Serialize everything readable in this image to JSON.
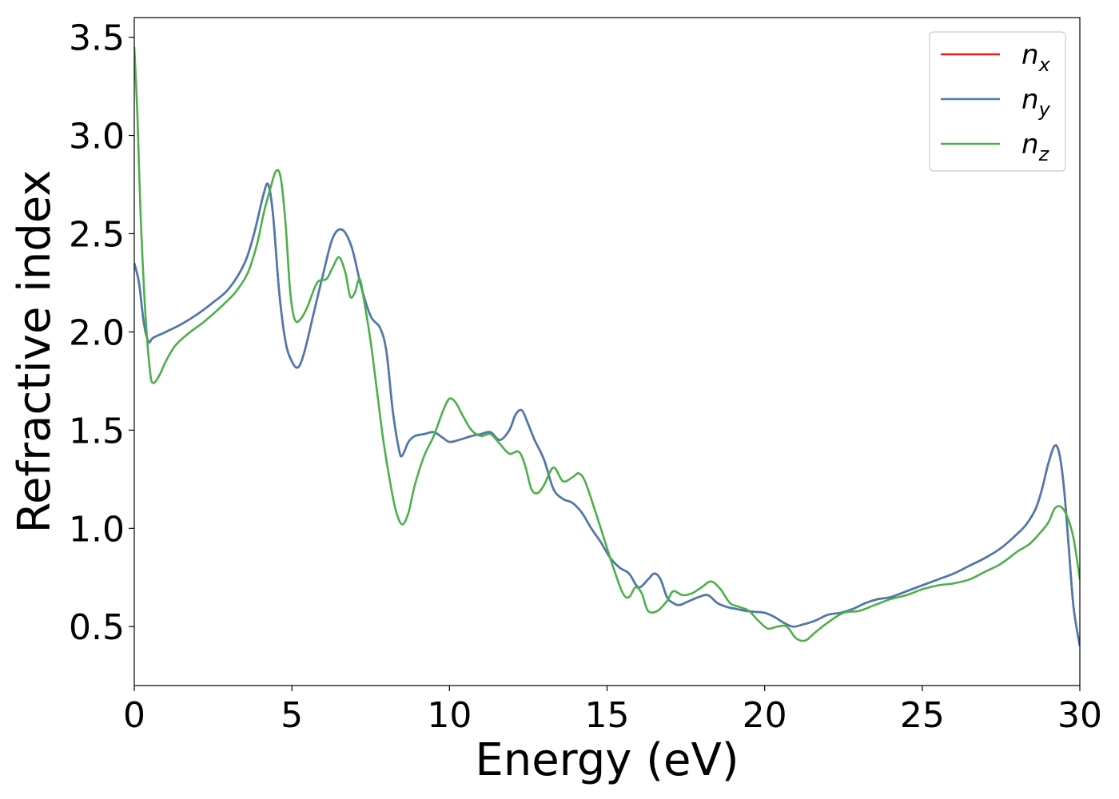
{
  "chart_data": {
    "type": "line",
    "title": "",
    "xlabel": "Energy (eV)",
    "ylabel": "Refractive index",
    "xlim": [
      0,
      30
    ],
    "ylim": [
      0.2,
      3.6
    ],
    "xticks": [
      0,
      5,
      10,
      15,
      20,
      25,
      30
    ],
    "xtick_labels": [
      "0",
      "5",
      "10",
      "15",
      "20",
      "25",
      "30"
    ],
    "yticks": [
      0.5,
      1.0,
      1.5,
      2.0,
      2.5,
      3.0,
      3.5
    ],
    "ytick_labels": [
      "0.5",
      "1.0",
      "1.5",
      "2.0",
      "2.5",
      "3.0",
      "3.5"
    ],
    "grid": false,
    "legend_position": "top-right",
    "series": [
      {
        "name": "n_x",
        "label_base": "n",
        "label_sub": "x",
        "color": "#e41a1c",
        "x": [
          0,
          0.15,
          0.3,
          0.45,
          0.6,
          1.0,
          1.5,
          2.0,
          2.5,
          3.0,
          3.5,
          3.8,
          4.1,
          4.25,
          4.4,
          4.6,
          4.8,
          5.0,
          5.2,
          5.4,
          5.7,
          6.0,
          6.3,
          6.6,
          6.9,
          7.2,
          7.5,
          7.8,
          8.0,
          8.2,
          8.4,
          8.5,
          8.7,
          8.9,
          9.2,
          9.5,
          9.8,
          10.0,
          10.3,
          10.7,
          11.0,
          11.3,
          11.6,
          11.9,
          12.1,
          12.3,
          12.5,
          12.7,
          13.0,
          13.3,
          13.6,
          13.9,
          14.2,
          14.5,
          14.8,
          15.1,
          15.4,
          15.7,
          16.0,
          16.3,
          16.5,
          16.7,
          16.9,
          17.1,
          17.3,
          17.6,
          17.9,
          18.2,
          18.5,
          18.8,
          19.1,
          19.4,
          19.7,
          20.0,
          20.3,
          20.6,
          20.9,
          21.2,
          21.6,
          22.0,
          22.4,
          22.8,
          23.2,
          23.6,
          24.0,
          24.5,
          25.0,
          25.5,
          26.0,
          26.5,
          27.0,
          27.5,
          28.0,
          28.3,
          28.6,
          28.8,
          29.0,
          29.2,
          29.35,
          29.5,
          29.65,
          29.8,
          30.0
        ],
        "y": [
          2.35,
          2.25,
          2.05,
          1.95,
          1.97,
          2.0,
          2.04,
          2.09,
          2.15,
          2.22,
          2.35,
          2.5,
          2.7,
          2.75,
          2.6,
          2.2,
          1.95,
          1.85,
          1.82,
          1.9,
          2.1,
          2.3,
          2.48,
          2.52,
          2.43,
          2.23,
          2.08,
          2.02,
          1.9,
          1.6,
          1.4,
          1.37,
          1.44,
          1.47,
          1.48,
          1.49,
          1.46,
          1.44,
          1.45,
          1.47,
          1.48,
          1.49,
          1.45,
          1.5,
          1.58,
          1.6,
          1.53,
          1.45,
          1.35,
          1.2,
          1.15,
          1.13,
          1.08,
          1.0,
          0.93,
          0.85,
          0.8,
          0.77,
          0.7,
          0.74,
          0.77,
          0.74,
          0.65,
          0.62,
          0.61,
          0.63,
          0.65,
          0.66,
          0.62,
          0.6,
          0.59,
          0.58,
          0.575,
          0.57,
          0.55,
          0.52,
          0.5,
          0.51,
          0.53,
          0.56,
          0.57,
          0.59,
          0.62,
          0.64,
          0.65,
          0.68,
          0.71,
          0.74,
          0.77,
          0.81,
          0.85,
          0.9,
          0.97,
          1.02,
          1.1,
          1.2,
          1.33,
          1.42,
          1.38,
          1.2,
          0.9,
          0.6,
          0.4
        ]
      },
      {
        "name": "n_y",
        "label_base": "n",
        "label_sub": "y",
        "color": "#4a7bb0",
        "x": [
          0,
          0.15,
          0.3,
          0.45,
          0.6,
          1.0,
          1.5,
          2.0,
          2.5,
          3.0,
          3.5,
          3.8,
          4.1,
          4.25,
          4.4,
          4.6,
          4.8,
          5.0,
          5.2,
          5.4,
          5.7,
          6.0,
          6.3,
          6.6,
          6.9,
          7.2,
          7.5,
          7.8,
          8.0,
          8.2,
          8.4,
          8.5,
          8.7,
          8.9,
          9.2,
          9.5,
          9.8,
          10.0,
          10.3,
          10.7,
          11.0,
          11.3,
          11.6,
          11.9,
          12.1,
          12.3,
          12.5,
          12.7,
          13.0,
          13.3,
          13.6,
          13.9,
          14.2,
          14.5,
          14.8,
          15.1,
          15.4,
          15.7,
          16.0,
          16.3,
          16.5,
          16.7,
          16.9,
          17.1,
          17.3,
          17.6,
          17.9,
          18.2,
          18.5,
          18.8,
          19.1,
          19.4,
          19.7,
          20.0,
          20.3,
          20.6,
          20.9,
          21.2,
          21.6,
          22.0,
          22.4,
          22.8,
          23.2,
          23.6,
          24.0,
          24.5,
          25.0,
          25.5,
          26.0,
          26.5,
          27.0,
          27.5,
          28.0,
          28.3,
          28.6,
          28.8,
          29.0,
          29.2,
          29.35,
          29.5,
          29.65,
          29.8,
          30.0
        ],
        "y": [
          2.35,
          2.25,
          2.05,
          1.95,
          1.97,
          2.0,
          2.04,
          2.09,
          2.15,
          2.22,
          2.35,
          2.5,
          2.7,
          2.75,
          2.6,
          2.2,
          1.95,
          1.85,
          1.82,
          1.9,
          2.1,
          2.3,
          2.48,
          2.52,
          2.43,
          2.23,
          2.08,
          2.02,
          1.9,
          1.6,
          1.4,
          1.37,
          1.44,
          1.47,
          1.48,
          1.49,
          1.46,
          1.44,
          1.45,
          1.47,
          1.48,
          1.49,
          1.45,
          1.5,
          1.58,
          1.6,
          1.53,
          1.45,
          1.35,
          1.2,
          1.15,
          1.13,
          1.08,
          1.0,
          0.93,
          0.85,
          0.8,
          0.77,
          0.7,
          0.74,
          0.77,
          0.74,
          0.65,
          0.62,
          0.61,
          0.63,
          0.65,
          0.66,
          0.62,
          0.6,
          0.59,
          0.58,
          0.575,
          0.57,
          0.55,
          0.52,
          0.5,
          0.51,
          0.53,
          0.56,
          0.57,
          0.59,
          0.62,
          0.64,
          0.65,
          0.68,
          0.71,
          0.74,
          0.77,
          0.81,
          0.85,
          0.9,
          0.97,
          1.02,
          1.1,
          1.2,
          1.33,
          1.42,
          1.38,
          1.2,
          0.9,
          0.6,
          0.4
        ]
      },
      {
        "name": "n_z",
        "label_base": "n",
        "label_sub": "z",
        "color": "#4daf4a",
        "x": [
          0,
          0.1,
          0.2,
          0.35,
          0.5,
          0.6,
          0.8,
          1.0,
          1.3,
          1.7,
          2.2,
          2.7,
          3.2,
          3.6,
          3.9,
          4.1,
          4.3,
          4.5,
          4.65,
          4.8,
          4.95,
          5.1,
          5.3,
          5.5,
          5.8,
          6.1,
          6.3,
          6.5,
          6.7,
          6.85,
          7.0,
          7.15,
          7.3,
          7.5,
          7.7,
          7.9,
          8.1,
          8.3,
          8.5,
          8.7,
          8.9,
          9.2,
          9.5,
          9.8,
          10.0,
          10.2,
          10.4,
          10.7,
          11.0,
          11.3,
          11.6,
          11.9,
          12.2,
          12.4,
          12.6,
          12.8,
          13.0,
          13.3,
          13.6,
          13.9,
          14.1,
          14.3,
          14.6,
          14.9,
          15.2,
          15.5,
          15.7,
          15.9,
          16.1,
          16.3,
          16.6,
          16.9,
          17.1,
          17.4,
          17.7,
          18.0,
          18.3,
          18.6,
          18.9,
          19.2,
          19.5,
          19.8,
          20.1,
          20.4,
          20.7,
          21.0,
          21.3,
          21.6,
          22.0,
          22.5,
          23.0,
          23.5,
          24.0,
          24.5,
          25.0,
          25.5,
          26.0,
          26.5,
          27.0,
          27.5,
          28.0,
          28.4,
          28.7,
          29.0,
          29.2,
          29.4,
          29.6,
          29.8,
          30.0
        ],
        "y": [
          3.45,
          3.1,
          2.6,
          2.1,
          1.8,
          1.74,
          1.78,
          1.85,
          1.93,
          1.99,
          2.05,
          2.12,
          2.2,
          2.3,
          2.45,
          2.6,
          2.72,
          2.82,
          2.78,
          2.55,
          2.2,
          2.06,
          2.07,
          2.13,
          2.25,
          2.27,
          2.33,
          2.38,
          2.3,
          2.18,
          2.2,
          2.27,
          2.15,
          1.95,
          1.7,
          1.45,
          1.25,
          1.09,
          1.02,
          1.08,
          1.22,
          1.37,
          1.47,
          1.6,
          1.66,
          1.64,
          1.58,
          1.5,
          1.47,
          1.48,
          1.43,
          1.38,
          1.39,
          1.32,
          1.2,
          1.18,
          1.22,
          1.31,
          1.24,
          1.26,
          1.28,
          1.24,
          1.1,
          0.95,
          0.8,
          0.67,
          0.65,
          0.7,
          0.67,
          0.58,
          0.58,
          0.63,
          0.68,
          0.66,
          0.67,
          0.7,
          0.73,
          0.69,
          0.62,
          0.6,
          0.58,
          0.53,
          0.49,
          0.5,
          0.5,
          0.44,
          0.43,
          0.47,
          0.52,
          0.57,
          0.58,
          0.61,
          0.64,
          0.66,
          0.69,
          0.71,
          0.72,
          0.74,
          0.78,
          0.82,
          0.88,
          0.92,
          0.97,
          1.03,
          1.1,
          1.11,
          1.06,
          0.95,
          0.74
        ]
      }
    ]
  }
}
